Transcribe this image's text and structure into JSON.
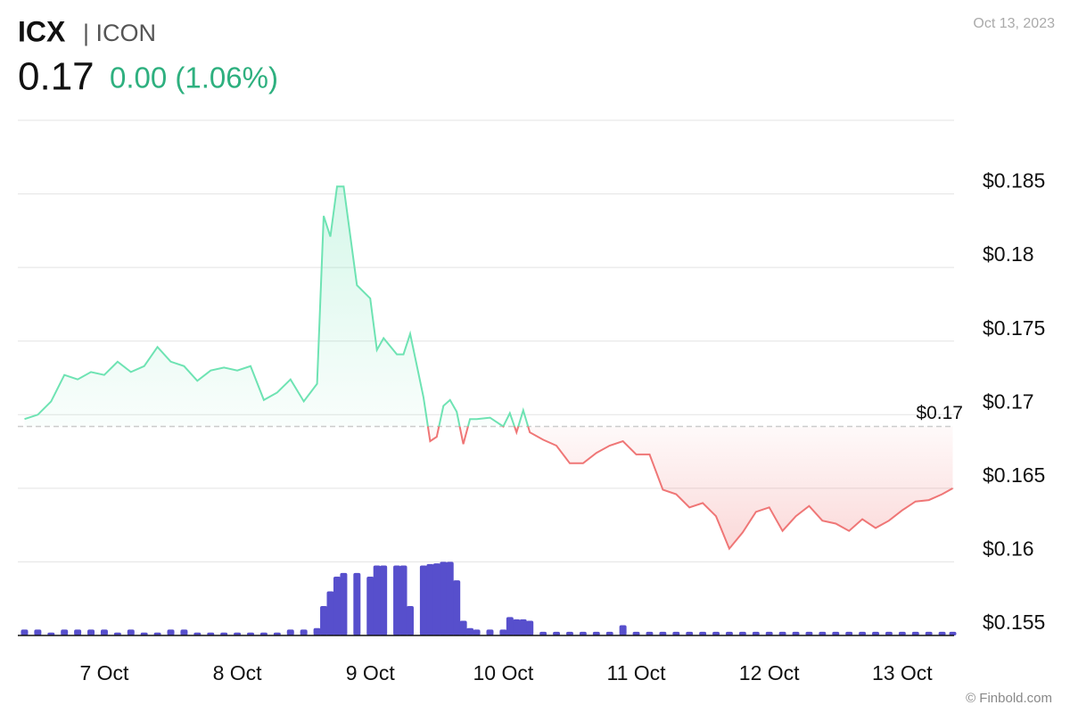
{
  "chart_data": {
    "type": "line",
    "title": "ICX",
    "subtitle": "| ICON",
    "price": "0.17",
    "change": "0.00 (1.06%)",
    "date": "Oct 13, 2023",
    "source": "© Finbold.com",
    "x": [
      6.4,
      6.5,
      6.6,
      6.7,
      6.8,
      6.9,
      7.0,
      7.1,
      7.2,
      7.3,
      7.4,
      7.5,
      7.6,
      7.7,
      7.8,
      7.9,
      8.0,
      8.1,
      8.2,
      8.3,
      8.4,
      8.5,
      8.6,
      8.65,
      8.7,
      8.75,
      8.8,
      8.9,
      9.0,
      9.05,
      9.1,
      9.2,
      9.25,
      9.3,
      9.4,
      9.45,
      9.5,
      9.55,
      9.6,
      9.65,
      9.7,
      9.75,
      9.8,
      9.9,
      10.0,
      10.05,
      10.1,
      10.15,
      10.2,
      10.3,
      10.4,
      10.5,
      10.6,
      10.7,
      10.8,
      10.9,
      11.0,
      11.1,
      11.2,
      11.3,
      11.4,
      11.5,
      11.6,
      11.7,
      11.8,
      11.9,
      12.0,
      12.1,
      12.2,
      12.3,
      12.4,
      12.5,
      12.6,
      12.7,
      12.8,
      12.9,
      13.0,
      13.1,
      13.2,
      13.3,
      13.38
    ],
    "values": [
      0.1697,
      0.17,
      0.1709,
      0.1727,
      0.1724,
      0.1729,
      0.1727,
      0.1736,
      0.1729,
      0.1733,
      0.1746,
      0.1736,
      0.1733,
      0.1723,
      0.173,
      0.1732,
      0.173,
      0.1733,
      0.171,
      0.1715,
      0.1724,
      0.1709,
      0.1721,
      0.1835,
      0.1821,
      0.1855,
      0.1855,
      0.1788,
      0.1779,
      0.1744,
      0.1752,
      0.1741,
      0.1741,
      0.1755,
      0.1712,
      0.1682,
      0.1685,
      0.1706,
      0.171,
      0.1702,
      0.168,
      0.1697,
      0.1697,
      0.1698,
      0.1692,
      0.1701,
      0.1688,
      0.1703,
      0.1688,
      0.1683,
      0.1679,
      0.1667,
      0.1667,
      0.1674,
      0.1679,
      0.1682,
      0.1673,
      0.1673,
      0.1649,
      0.1646,
      0.1637,
      0.164,
      0.1631,
      0.1609,
      0.162,
      0.1634,
      0.1637,
      0.1621,
      0.1631,
      0.1638,
      0.1628,
      0.1626,
      0.1621,
      0.1629,
      0.1623,
      0.1628,
      0.1635,
      0.1641,
      0.1642,
      0.1646,
      0.165
    ],
    "colors": {
      "up": "#6ee3b3",
      "down": "#ef7676"
    },
    "reference": {
      "value": 0.1692,
      "label": "$0.17"
    },
    "volume": {
      "axis": "y2",
      "color": "#574fcc",
      "values": [
        8,
        8,
        4,
        8,
        8,
        8,
        8,
        4,
        8,
        4,
        4,
        8,
        8,
        4,
        4,
        4,
        4,
        4,
        4,
        4,
        8,
        8,
        10,
        40,
        60,
        80,
        85,
        85,
        80,
        95,
        95,
        95,
        95,
        40,
        95,
        97,
        98,
        100,
        100,
        75,
        20,
        10,
        8,
        8,
        8,
        25,
        22,
        22,
        20,
        5,
        5,
        5,
        5,
        5,
        5,
        14,
        5,
        5,
        5,
        5,
        5,
        5,
        5,
        5,
        5,
        5,
        5,
        5,
        5,
        5,
        5,
        5,
        5,
        5,
        5,
        5,
        5,
        5,
        5,
        5,
        5
      ]
    },
    "xlim": [
      6.35,
      13.39
    ],
    "xticks": [
      {
        "value": 7,
        "label": "7 Oct"
      },
      {
        "value": 8,
        "label": "8 Oct"
      },
      {
        "value": 9,
        "label": "9 Oct"
      },
      {
        "value": 10,
        "label": "10 Oct"
      },
      {
        "value": 11,
        "label": "11 Oct"
      },
      {
        "value": 12,
        "label": "12 Oct"
      },
      {
        "value": 13,
        "label": "13 Oct"
      }
    ],
    "ylim": [
      0.155,
      0.19
    ],
    "yticks": [
      {
        "value": 0.155,
        "label": "$0.155"
      },
      {
        "value": 0.16,
        "label": "$0.16"
      },
      {
        "value": 0.165,
        "label": "$0.165"
      },
      {
        "value": 0.17,
        "label": "$0.17"
      },
      {
        "value": 0.175,
        "label": "$0.175"
      },
      {
        "value": 0.18,
        "label": "$0.18"
      },
      {
        "value": 0.185,
        "label": "$0.185"
      }
    ],
    "y2lim": [
      0,
      700
    ],
    "grid": true
  }
}
